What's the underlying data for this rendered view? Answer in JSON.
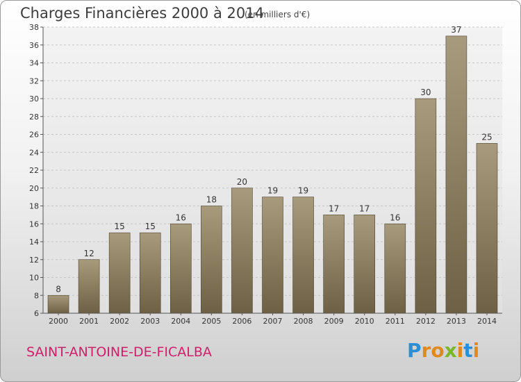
{
  "chart_data": {
    "type": "bar",
    "title": "Charges Financières 2000 à 2014",
    "unit_note": "(en milliers d'€)",
    "categories": [
      "2000",
      "2001",
      "2002",
      "2003",
      "2004",
      "2005",
      "2006",
      "2007",
      "2008",
      "2009",
      "2010",
      "2011",
      "2012",
      "2013",
      "2014"
    ],
    "values": [
      8,
      12,
      15,
      15,
      16,
      18,
      20,
      19,
      19,
      17,
      17,
      16,
      30,
      37,
      25
    ],
    "ylim": [
      6,
      38
    ],
    "yticks": [
      6,
      8,
      10,
      12,
      14,
      16,
      18,
      20,
      22,
      24,
      26,
      28,
      30,
      32,
      34,
      36,
      38
    ],
    "grid": true,
    "bar_color": "#8a7a5c",
    "xlabel": "",
    "ylabel": ""
  },
  "footer": {
    "commune": "SAINT-ANTOINE-DE-FICALBA",
    "logo_letters": [
      {
        "ch": "P",
        "color": "#2a8fd6"
      },
      {
        "ch": "r",
        "color": "#e08a1e"
      },
      {
        "ch": "o",
        "color": "#e08a1e"
      },
      {
        "ch": "x",
        "color": "#79b928"
      },
      {
        "ch": "i",
        "color": "#e08a1e"
      },
      {
        "ch": "t",
        "color": "#2a8fd6"
      },
      {
        "ch": "i",
        "color": "#e08a1e"
      }
    ]
  }
}
